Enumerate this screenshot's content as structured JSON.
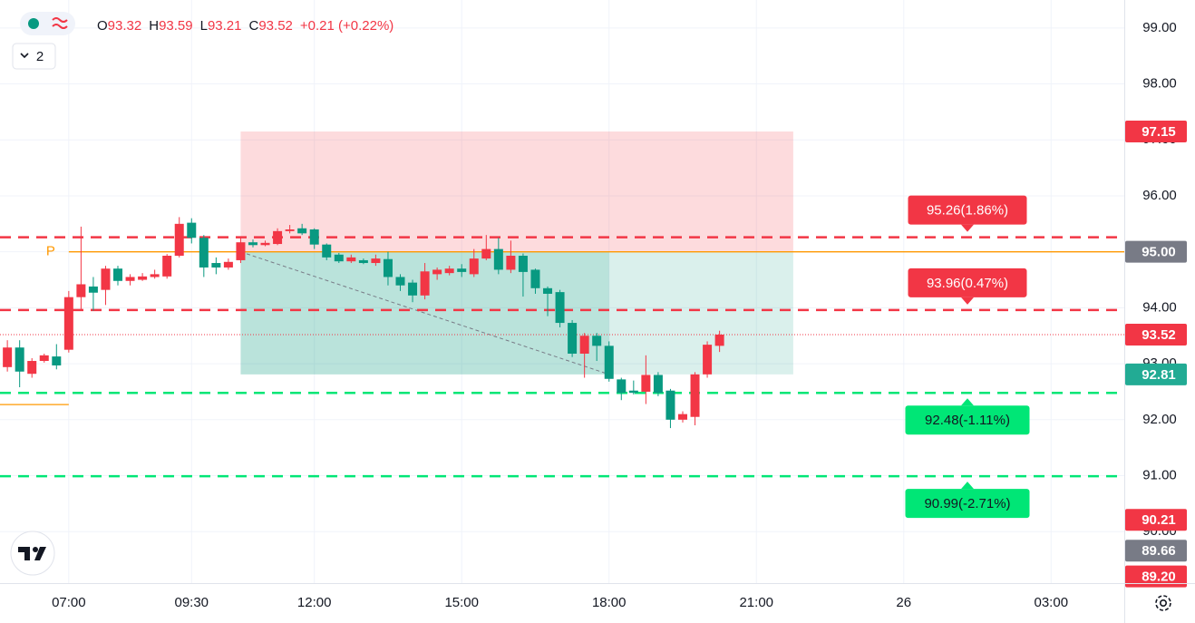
{
  "chart_data": {
    "type": "candlestick",
    "header": {
      "labels": [
        "O",
        "H",
        "L",
        "C"
      ],
      "values": [
        93.32,
        93.59,
        93.21,
        93.52
      ],
      "change": "+0.21 (+0.22%)",
      "color": "#f23645"
    },
    "controls": {
      "collapse": "2"
    },
    "xlim": [
      5.6,
      28.49
    ],
    "xticks": [
      {
        "value": 7,
        "label": "07:00"
      },
      {
        "value": 9.5,
        "label": "09:30"
      },
      {
        "value": 12,
        "label": "12:00"
      },
      {
        "value": 15,
        "label": "15:00"
      },
      {
        "value": 18,
        "label": "18:00"
      },
      {
        "value": 21,
        "label": "21:00"
      },
      {
        "value": 24,
        "label": "26"
      },
      {
        "value": 27,
        "label": "03:00"
      }
    ],
    "ylim": [
      89.08,
      99.5
    ],
    "yticks": [
      {
        "value": 90,
        "label": "90.00"
      },
      {
        "value": 91,
        "label": "91.00"
      },
      {
        "value": 92,
        "label": "92.00"
      },
      {
        "value": 93,
        "label": "93.00"
      },
      {
        "value": 94,
        "label": "94.00"
      },
      {
        "value": 95,
        "label": "95.00"
      },
      {
        "value": 96,
        "label": "96.00"
      },
      {
        "value": 97,
        "label": "97.00"
      },
      {
        "value": 98,
        "label": "98.00"
      },
      {
        "value": 99,
        "label": "99.00"
      }
    ],
    "grid": true,
    "up_color": "#f23645",
    "down_color": "#089981",
    "x": [
      5.75,
      6,
      6.25,
      6.5,
      6.75,
      7,
      7.25,
      7.5,
      7.75,
      8,
      8.25,
      8.5,
      8.75,
      9,
      9.25,
      9.5,
      9.75,
      10,
      10.25,
      10.5,
      10.75,
      11,
      11.25,
      11.5,
      11.75,
      12,
      12.25,
      12.5,
      12.75,
      13,
      13.25,
      13.5,
      13.75,
      14,
      14.25,
      14.5,
      14.75,
      15,
      15.25,
      15.5,
      15.75,
      16,
      16.25,
      16.5,
      16.75,
      17,
      17.25,
      17.5,
      17.75,
      18,
      18.25,
      18.5,
      18.75,
      19,
      19.25,
      19.5,
      19.75,
      20,
      20.25
    ],
    "open": [
      92.94,
      93.29,
      92.82,
      93.05,
      93.13,
      93.25,
      94.19,
      94.38,
      94.32,
      94.7,
      94.48,
      94.5,
      94.55,
      94.56,
      94.93,
      95.52,
      95.25,
      94.8,
      94.72,
      94.85,
      95.17,
      95.12,
      95.14,
      95.37,
      95.42,
      95.4,
      95.13,
      94.95,
      94.83,
      94.85,
      94.8,
      94.87,
      94.55,
      94.45,
      94.22,
      94.6,
      94.62,
      94.7,
      94.6,
      94.88,
      95.05,
      94.68,
      94.93,
      94.68,
      94.35,
      94.28,
      93.73,
      93.18,
      93.5,
      93.32,
      92.72,
      92.52,
      92.5,
      92.8,
      92.52,
      92.0,
      92.05,
      92.81,
      93.32
    ],
    "high": [
      93.42,
      93.42,
      93.1,
      93.18,
      93.35,
      94.3,
      95.45,
      94.55,
      94.75,
      94.75,
      94.6,
      94.62,
      94.68,
      94.96,
      95.62,
      95.6,
      95.3,
      94.9,
      94.88,
      95.25,
      95.22,
      95.2,
      95.42,
      95.48,
      95.5,
      95.42,
      95.15,
      94.98,
      94.95,
      94.88,
      94.95,
      95.0,
      94.6,
      94.5,
      94.8,
      94.72,
      94.75,
      94.78,
      95.05,
      95.3,
      95.25,
      95.2,
      94.97,
      94.7,
      94.38,
      94.32,
      93.78,
      93.55,
      93.55,
      93.4,
      92.75,
      92.7,
      93.15,
      92.85,
      92.55,
      92.15,
      92.85,
      93.4,
      93.59
    ],
    "low": [
      92.86,
      92.58,
      92.75,
      93.02,
      92.9,
      93.2,
      93.95,
      93.95,
      94.05,
      94.4,
      94.4,
      94.48,
      94.52,
      94.52,
      94.9,
      95.15,
      94.55,
      94.6,
      94.68,
      94.8,
      95.08,
      95.1,
      95.12,
      95.33,
      95.3,
      95.05,
      94.85,
      94.8,
      94.8,
      94.78,
      94.75,
      94.4,
      94.3,
      94.1,
      94.15,
      94.5,
      94.58,
      94.55,
      94.55,
      94.85,
      94.6,
      94.62,
      94.2,
      94.25,
      93.85,
      93.65,
      93.12,
      92.75,
      93.05,
      92.68,
      92.35,
      92.45,
      92.28,
      92.42,
      91.85,
      91.95,
      91.9,
      92.75,
      93.21
    ],
    "close": [
      93.29,
      92.86,
      93.05,
      93.15,
      92.97,
      94.19,
      94.42,
      94.27,
      94.7,
      94.48,
      94.55,
      94.56,
      94.6,
      94.93,
      95.5,
      95.25,
      94.72,
      94.72,
      94.82,
      95.17,
      95.12,
      95.16,
      95.37,
      95.4,
      95.33,
      95.13,
      94.9,
      94.83,
      94.9,
      94.8,
      94.88,
      94.55,
      94.4,
      94.22,
      94.65,
      94.68,
      94.7,
      94.64,
      94.88,
      95.05,
      94.68,
      94.93,
      94.64,
      94.35,
      94.25,
      93.73,
      93.18,
      93.5,
      93.32,
      92.73,
      92.48,
      92.48,
      92.8,
      92.48,
      92.0,
      92.1,
      92.81,
      93.34,
      93.52
    ],
    "position": {
      "start": 10.5,
      "end": 21.75,
      "current": 18,
      "entry": 95.0,
      "stop": {
        "value": 97.15,
        "label": "97.15",
        "color": "#f23645"
      },
      "target": {
        "value": 92.81,
        "label": "92.81",
        "color": "#22ab94"
      }
    },
    "pivots": [
      {
        "value": 95.0,
        "from": 7,
        "label": "P",
        "price_label": "95.00",
        "color": "#ff9800",
        "badge_color": "#787b86"
      },
      {
        "value": 92.27,
        "to": 7,
        "color": "#ff9800"
      }
    ],
    "levels": [
      {
        "value": 95.26,
        "label": "95.26(1.86%)",
        "color": "#f23645"
      },
      {
        "value": 93.96,
        "label": "93.96(0.47%)",
        "color": "#f23645"
      },
      {
        "value": 92.48,
        "label": "92.48(-1.11%)",
        "color": "#00e676"
      },
      {
        "value": 90.99,
        "label": "90.99(-2.71%)",
        "color": "#00e676"
      }
    ],
    "axis_badges": [
      {
        "value": 93.52,
        "label": "93.52",
        "color": "#f23645"
      },
      {
        "value": 90.21,
        "label": "90.21",
        "color": "#f23645"
      },
      {
        "value": 89.66,
        "label": "89.66",
        "color": "#787b86"
      },
      {
        "value": 89.2,
        "label": "89.20",
        "color": "#f23645"
      }
    ]
  }
}
